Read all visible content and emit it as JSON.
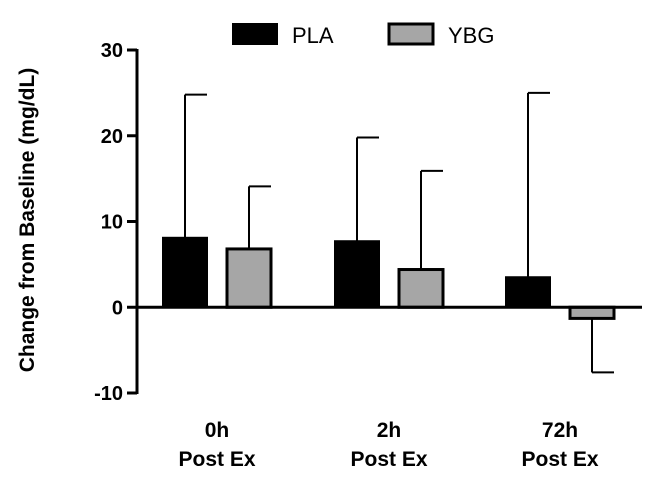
{
  "chart_data": {
    "type": "bar",
    "title": "",
    "xlabel": "",
    "ylabel": "Change from Baseline (mg/dL)",
    "ylim": [
      -10,
      30
    ],
    "yticks": [
      30,
      20,
      10,
      0,
      -10
    ],
    "ytick_labels": [
      "30",
      "20",
      "10",
      "0",
      "-10"
    ],
    "grid": false,
    "legend_position": "top-center",
    "categories": [
      {
        "line1": "0h",
        "line2": "Post Ex"
      },
      {
        "line1": "2h",
        "line2": "Post Ex"
      },
      {
        "line1": "72h",
        "line2": "Post Ex"
      }
    ],
    "series": [
      {
        "name": "PLA",
        "color": "#000000",
        "values": [
          8.1,
          7.7,
          3.5
        ],
        "error_upper": [
          24.8,
          19.8,
          25.0
        ]
      },
      {
        "name": "YBG",
        "color": "#a6a6a6",
        "values": [
          6.8,
          4.4,
          -1.3
        ],
        "error_upper": [
          14.1,
          15.9,
          -7.6
        ]
      }
    ]
  }
}
